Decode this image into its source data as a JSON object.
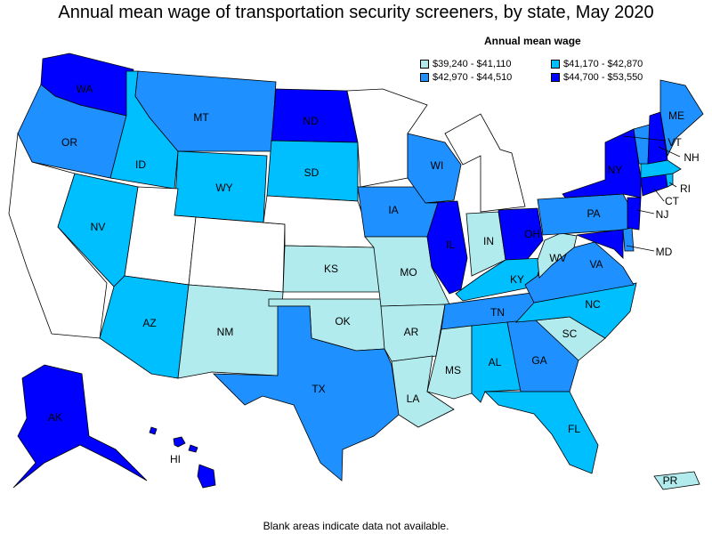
{
  "title": "Annual mean wage of transportation security screeners, by state, May 2020",
  "legend": {
    "title": "Annual mean wage",
    "items": [
      {
        "range": "$39,240 - $41,110",
        "color": "#b2ebee"
      },
      {
        "range": "$41,170 - $42,870",
        "color": "#00bfff"
      },
      {
        "range": "$42,970 - $44,510",
        "color": "#1e90ff"
      },
      {
        "range": "$44,700 - $53,550",
        "color": "#0000ff"
      }
    ]
  },
  "nodata_color": "#ffffff",
  "footnote": "Blank areas indicate data not available.",
  "states": {
    "WA": {
      "label": "WA",
      "bin": 3
    },
    "OR": {
      "label": "OR",
      "bin": 2
    },
    "CA": {
      "label": "",
      "bin": -1
    },
    "ID": {
      "label": "ID",
      "bin": 1
    },
    "NV": {
      "label": "NV",
      "bin": 1
    },
    "MT": {
      "label": "MT",
      "bin": 2
    },
    "WY": {
      "label": "WY",
      "bin": 1
    },
    "UT": {
      "label": "",
      "bin": -1
    },
    "AZ": {
      "label": "AZ",
      "bin": 1
    },
    "CO": {
      "label": "",
      "bin": -1
    },
    "NM": {
      "label": "NM",
      "bin": 0
    },
    "ND": {
      "label": "ND",
      "bin": 3
    },
    "SD": {
      "label": "SD",
      "bin": 1
    },
    "NE": {
      "label": "",
      "bin": -1
    },
    "KS": {
      "label": "KS",
      "bin": 0
    },
    "OK": {
      "label": "OK",
      "bin": 0
    },
    "TX": {
      "label": "TX",
      "bin": 2
    },
    "MN": {
      "label": "",
      "bin": -1
    },
    "IA": {
      "label": "IA",
      "bin": 2
    },
    "MO": {
      "label": "MO",
      "bin": 0
    },
    "AR": {
      "label": "AR",
      "bin": 0
    },
    "LA": {
      "label": "LA",
      "bin": 0
    },
    "WI": {
      "label": "WI",
      "bin": 2
    },
    "IL": {
      "label": "IL",
      "bin": 3
    },
    "MI": {
      "label": "",
      "bin": -1
    },
    "IN": {
      "label": "IN",
      "bin": 0
    },
    "OH": {
      "label": "OH",
      "bin": 3
    },
    "KY": {
      "label": "KY",
      "bin": 1
    },
    "TN": {
      "label": "TN",
      "bin": 2
    },
    "MS": {
      "label": "MS",
      "bin": 0
    },
    "AL": {
      "label": "AL",
      "bin": 1
    },
    "GA": {
      "label": "GA",
      "bin": 2
    },
    "FL": {
      "label": "FL",
      "bin": 1
    },
    "SC": {
      "label": "SC",
      "bin": 0
    },
    "NC": {
      "label": "NC",
      "bin": 1
    },
    "VA": {
      "label": "VA",
      "bin": 2
    },
    "WV": {
      "label": "WV",
      "bin": 0
    },
    "PA": {
      "label": "PA",
      "bin": 2
    },
    "NY": {
      "label": "NY",
      "bin": 3
    },
    "NJ": {
      "label": "NJ",
      "bin": 3
    },
    "MD": {
      "label": "MD",
      "bin": 3
    },
    "DE": {
      "label": "",
      "bin": 2
    },
    "CT": {
      "label": "CT",
      "bin": 3
    },
    "RI": {
      "label": "RI",
      "bin": 1
    },
    "MA": {
      "label": "",
      "bin": 1
    },
    "VT": {
      "label": "VT",
      "bin": 2
    },
    "NH": {
      "label": "NH",
      "bin": 3
    },
    "ME": {
      "label": "ME",
      "bin": 2
    },
    "AK": {
      "label": "AK",
      "bin": 3
    },
    "HI": {
      "label": "HI",
      "bin": 3
    },
    "PR": {
      "label": "PR",
      "bin": 0
    }
  }
}
